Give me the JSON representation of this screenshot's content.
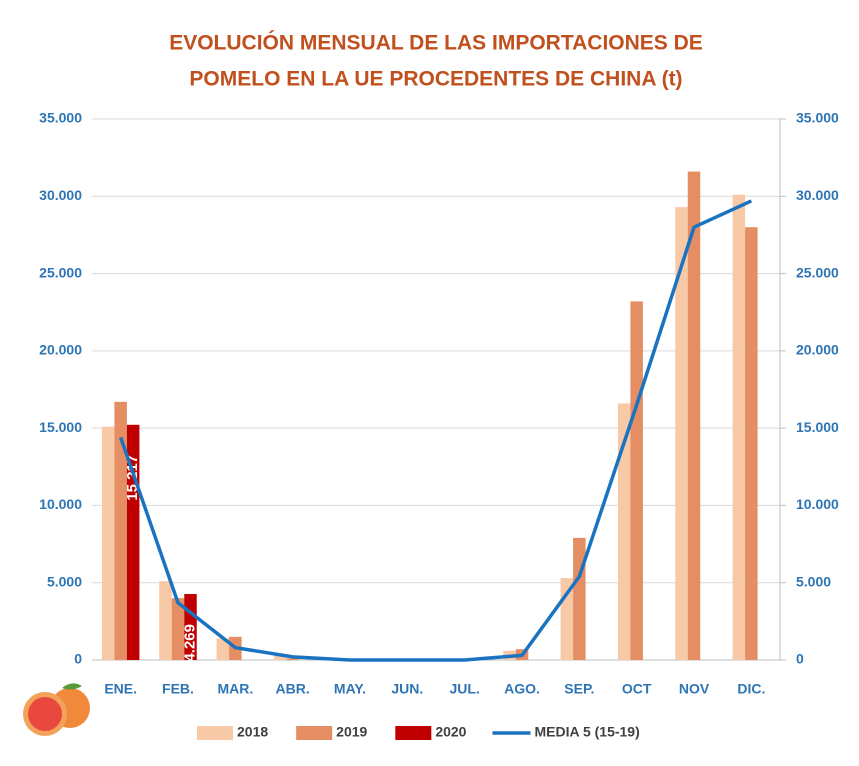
{
  "chart_data": {
    "type": "bar",
    "title": [
      "EVOLUCIÓN MENSUAL DE LAS IMPORTACIONES DE",
      "POMELO EN LA UE PROCEDENTES DE CHINA (t)"
    ],
    "categories": [
      "ENE.",
      "FEB.",
      "MAR.",
      "ABR.",
      "MAY.",
      "JUN.",
      "JUL.",
      "AGO.",
      "SEP.",
      "OCT",
      "NOV",
      "DIC."
    ],
    "series": [
      {
        "name": "2018",
        "color": "#f8c9a6",
        "values": [
          15100,
          5100,
          1400,
          300,
          0,
          0,
          0,
          600,
          5300,
          16600,
          29300,
          30100
        ]
      },
      {
        "name": "2019",
        "color": "#e58e64",
        "values": [
          16700,
          4000,
          1500,
          100,
          0,
          0,
          0,
          700,
          7900,
          23200,
          31600,
          28000
        ]
      },
      {
        "name": "2020",
        "color": "#c00000",
        "values": [
          15217,
          4269,
          null,
          null,
          null,
          null,
          null,
          null,
          null,
          null,
          null,
          null
        ],
        "value_labels": [
          "15.217",
          "4.269",
          null,
          null,
          null,
          null,
          null,
          null,
          null,
          null,
          null,
          null
        ]
      },
      {
        "name": "MEDIA 5 (15-19)",
        "color": "#1a73c0",
        "type": "line",
        "axis": "y2",
        "values": [
          14400,
          3700,
          800,
          200,
          0,
          0,
          0,
          300,
          5400,
          16500,
          28000,
          29700
        ]
      }
    ],
    "ylim": [
      0,
      35000
    ],
    "yticks": [
      0,
      {
        "value": 5000,
        "label": "5.000"
      },
      {
        "value": 10000,
        "label": "10.000"
      },
      {
        "value": 15000,
        "label": "15.000"
      },
      {
        "value": 20000,
        "label": "20.000"
      },
      {
        "value": 25000,
        "label": "25.000"
      },
      {
        "value": 30000,
        "label": "30.000"
      },
      {
        "value": 35000,
        "label": "35.000"
      }
    ],
    "y2lim": [
      0,
      35000
    ],
    "y2ticks": [
      0,
      {
        "value": 5000,
        "label": "5.000"
      },
      {
        "value": 10000,
        "label": "10.000"
      },
      {
        "value": 15000,
        "label": "15.000"
      },
      {
        "value": 20000,
        "label": "20.000"
      },
      {
        "value": 25000,
        "label": "25.000"
      },
      {
        "value": 30000,
        "label": "30.000"
      },
      {
        "value": 35000,
        "label": "35.000"
      }
    ],
    "grid": true
  }
}
